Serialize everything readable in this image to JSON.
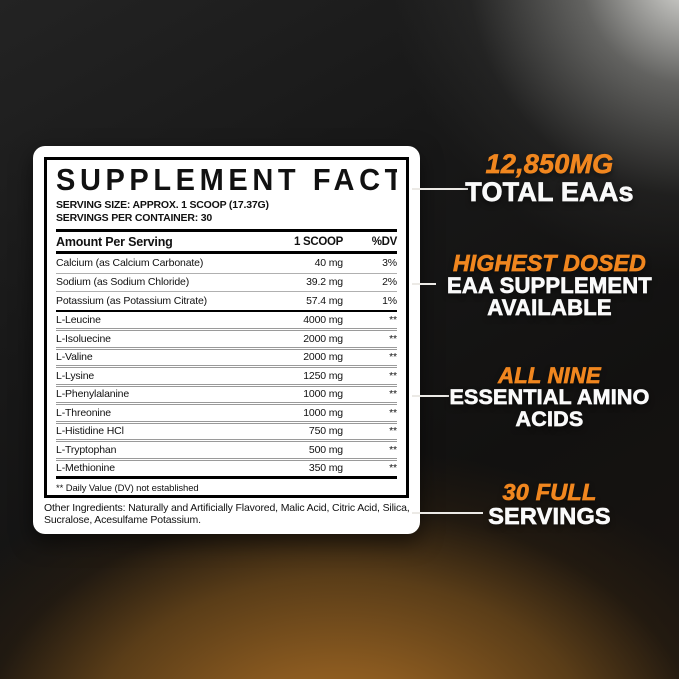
{
  "colors": {
    "accent_orange": "#F0861F",
    "callout_white": "#FAFAFA",
    "label_background": "#FFFFFF",
    "label_text": "#111111",
    "background_glow": "#A76E24"
  },
  "label": {
    "title": "SUPPLEMENT FACTS",
    "serving_size": "SERVING SIZE: APPROX. 1 SCOOP (17.37G)",
    "servings_per_container": "SERVINGS PER CONTAINER: 30",
    "table": {
      "headers": {
        "name": "Amount Per Serving",
        "amount": "1 SCOOP",
        "dv": "%DV"
      },
      "rows": [
        {
          "name": "Calcium (as Calcium Carbonate)",
          "amount": "40 mg",
          "dv": "3%"
        },
        {
          "name": "Sodium (as Sodium Chloride)",
          "amount": "39.2 mg",
          "dv": "2%"
        },
        {
          "name": "Potassium (as Potassium Citrate)",
          "amount": "57.4 mg",
          "dv": "1%"
        },
        {
          "name": "L-Leucine",
          "amount": "4000 mg",
          "dv": "**"
        },
        {
          "name": "L-Isoluecine",
          "amount": "2000 mg",
          "dv": "**"
        },
        {
          "name": "L-Valine",
          "amount": "2000 mg",
          "dv": "**"
        },
        {
          "name": "L-Lysine",
          "amount": "1250 mg",
          "dv": "**"
        },
        {
          "name": "L-Phenylalanine",
          "amount": "1000 mg",
          "dv": "**"
        },
        {
          "name": "L-Threonine",
          "amount": "1000 mg",
          "dv": "**"
        },
        {
          "name": "L-Histidine HCl",
          "amount": "750 mg",
          "dv": "**"
        },
        {
          "name": "L-Tryptophan",
          "amount": "500 mg",
          "dv": "**"
        },
        {
          "name": "L-Methionine",
          "amount": "350 mg",
          "dv": "**"
        }
      ]
    },
    "footnote": "** Daily Value (DV) not established",
    "other_ingredients": "Other Ingredients: Naturally and Artificially Flavored, Malic Acid, Citric Acid, Silica, Sucralose, Acesulfame Potassium."
  },
  "callouts": [
    {
      "highlight": "12,850MG",
      "lines": [
        "TOTAL EAAs"
      ]
    },
    {
      "highlight": "HIGHEST DOSED",
      "lines": [
        "EAA SUPPLEMENT",
        "AVAILABLE"
      ]
    },
    {
      "highlight": "ALL NINE",
      "lines": [
        "ESSENTIAL AMINO",
        "ACIDS"
      ]
    },
    {
      "highlight": "30 FULL",
      "lines": [
        "SERVINGS"
      ]
    }
  ]
}
